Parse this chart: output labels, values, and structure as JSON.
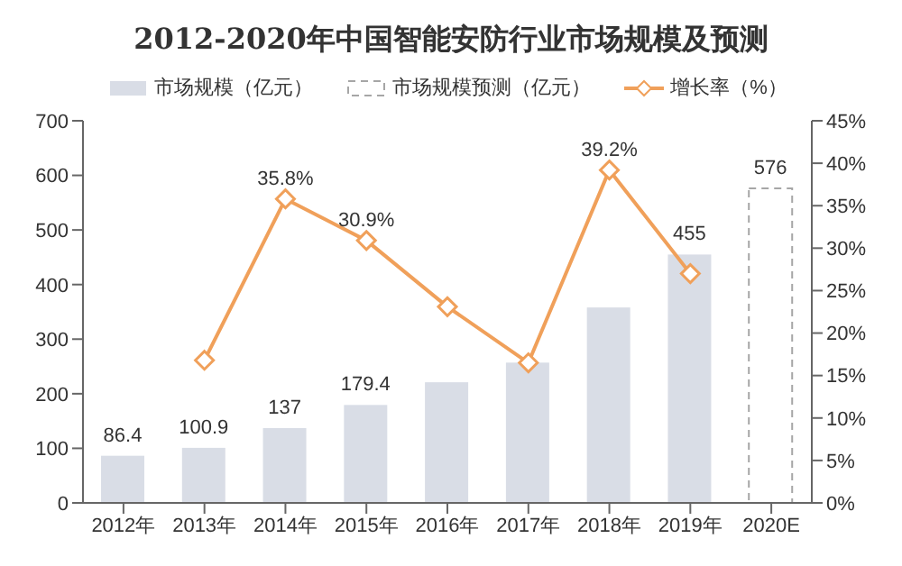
{
  "chart_data": {
    "type": "bar",
    "title": "2012-2020年中国智能安防行业市场规模及预测",
    "categories": [
      "2012年",
      "2013年",
      "2014年",
      "2015年",
      "2016年",
      "2017年",
      "2018年",
      "2019年",
      "2020E"
    ],
    "stacked": true,
    "series": [
      {
        "name": "市场规模（亿元）",
        "color": "#d9dde6",
        "values": [
          86.4,
          100.9,
          137,
          179.4,
          221,
          257,
          358,
          455,
          null
        ],
        "value_labels": [
          "86.4",
          "100.9",
          "137",
          "179.4",
          null,
          null,
          null,
          "455",
          null
        ]
      },
      {
        "name": "市场规模预测（亿元）",
        "color": "#a6a6a6",
        "line_style": "dashed",
        "values": [
          null,
          null,
          null,
          null,
          null,
          null,
          null,
          null,
          576
        ],
        "value_labels": [
          null,
          null,
          null,
          null,
          null,
          null,
          null,
          null,
          "576"
        ]
      },
      {
        "name": "增长率（%）",
        "type": "line",
        "axis": "y2",
        "color": "#f0a05a",
        "marker": "diamond",
        "values": [
          null,
          16.8,
          35.8,
          30.9,
          23.1,
          16.5,
          39.2,
          27,
          null
        ],
        "value_labels": [
          null,
          null,
          "35.8%",
          "30.9%",
          null,
          null,
          "39.2%",
          null,
          null
        ]
      }
    ],
    "ylim": [
      0,
      700
    ],
    "yticks": [
      0,
      100,
      200,
      300,
      400,
      500,
      600,
      700
    ],
    "y2lim": [
      0,
      45
    ],
    "y2ticks": [
      {
        "value": 0,
        "label": "0%"
      },
      {
        "value": 5,
        "label": "5%"
      },
      {
        "value": 10,
        "label": "10%"
      },
      {
        "value": 15,
        "label": "15%"
      },
      {
        "value": 20,
        "label": "20%"
      },
      {
        "value": 25,
        "label": "25%"
      },
      {
        "value": 30,
        "label": "30%"
      },
      {
        "value": 35,
        "label": "35%"
      },
      {
        "value": 40,
        "label": "40%"
      },
      {
        "value": 45,
        "label": "45%"
      }
    ],
    "grid": false,
    "legend": "top"
  }
}
